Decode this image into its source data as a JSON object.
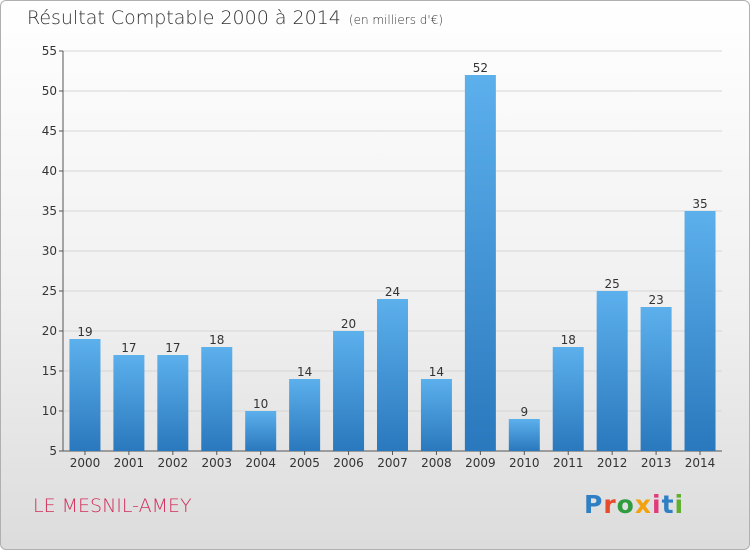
{
  "title": "Résultat Comptable 2000 à 2014",
  "subtitle": "(en milliers d'€)",
  "commune": "LE MESNIL-AMEY",
  "logo": {
    "letters": [
      "P",
      "r",
      "o",
      "x",
      "i",
      "t",
      "i"
    ],
    "colors": [
      "#2f7fc4",
      "#e84a2c",
      "#2f9d3d",
      "#f2a20e",
      "#e23a7a",
      "#2f7fc4",
      "#5fae2e"
    ]
  },
  "chart_data": {
    "type": "bar",
    "title": "Résultat Comptable 2000 à 2014",
    "subtitle": "(en milliers d'€)",
    "xlabel": "",
    "ylabel": "",
    "categories": [
      "2000",
      "2001",
      "2002",
      "2003",
      "2004",
      "2005",
      "2006",
      "2007",
      "2008",
      "2009",
      "2010",
      "2011",
      "2012",
      "2013",
      "2014"
    ],
    "values": [
      19,
      17,
      17,
      18,
      10,
      14,
      20,
      24,
      14,
      52,
      9,
      18,
      25,
      23,
      35
    ],
    "ylim": [
      5,
      55
    ],
    "yticks": [
      5,
      10,
      15,
      20,
      25,
      30,
      35,
      40,
      45,
      50,
      55
    ],
    "grid": true,
    "bar_color": "#4a9ee0"
  }
}
